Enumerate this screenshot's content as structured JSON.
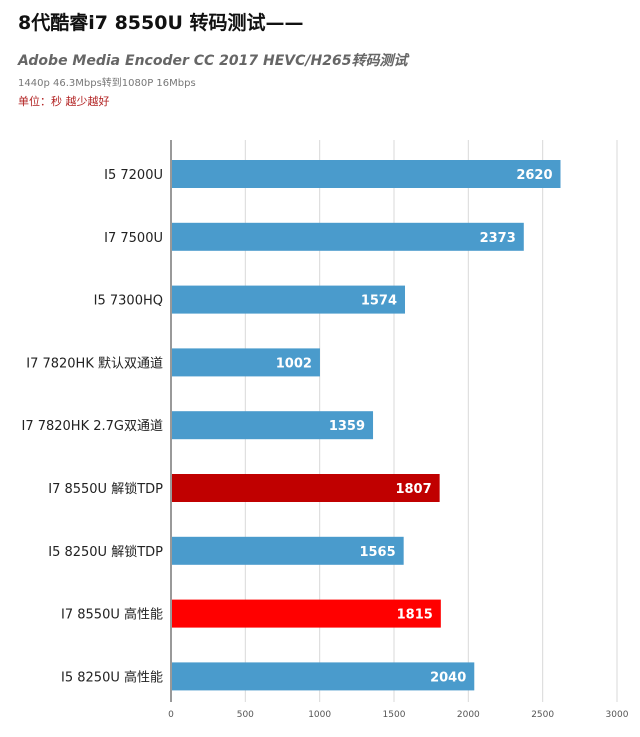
{
  "chart_data": {
    "type": "bar",
    "orientation": "horizontal",
    "title": "8代酷睿i7 8550U 转码测试——",
    "subtitle": "Adobe Media Encoder CC 2017 HEVC/H265转码测试",
    "note": "1440p 46.3Mbps转到1080P 16Mbps",
    "unit_label": "单位：秒 越少越好",
    "categories": [
      "I5 7200U",
      "I7 7500U",
      "I5 7300HQ",
      "I7 7820HK 默认双通道",
      "I7 7820HK 2.7G双通道",
      "I7 8550U 解锁TDP",
      "I5 8250U 解锁TDP",
      "I7 8550U 高性能",
      "I5 8250U 高性能"
    ],
    "values": [
      2620,
      2373,
      1574,
      1002,
      1359,
      1807,
      1565,
      1815,
      2040
    ],
    "bar_colors": [
      "#4a9bcc",
      "#4a9bcc",
      "#4a9bcc",
      "#4a9bcc",
      "#4a9bcc",
      "#c00000",
      "#4a9bcc",
      "#ff0000",
      "#4a9bcc"
    ],
    "xlim": [
      0,
      3000
    ],
    "xticks": [
      0,
      500,
      1000,
      1500,
      2000,
      2500,
      3000
    ],
    "grid": true,
    "legend": "none"
  }
}
